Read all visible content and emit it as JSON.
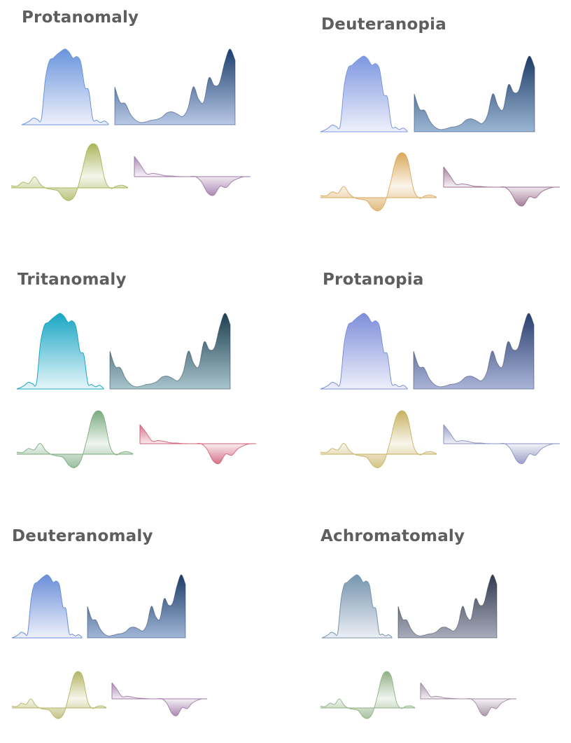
{
  "chart_data": {
    "type": "area",
    "shapes": {
      "bell": [
        0,
        0.02,
        0.05,
        0.09,
        0.07,
        0.08,
        0.6,
        0.84,
        0.88,
        0.93,
        0.97,
        1,
        0.96,
        0.88,
        0.9,
        0.82,
        0.5,
        0.45,
        0.08,
        0.06,
        0.03,
        0.05,
        0.01
      ],
      "rising": [
        0.5,
        0.3,
        0.28,
        0.14,
        0.06,
        0.03,
        0.04,
        0.06,
        0.07,
        0.1,
        0.16,
        0.17,
        0.14,
        0.11,
        0.22,
        0.5,
        0.34,
        0.3,
        0.62,
        0.52,
        0.55,
        0.82,
        1,
        0.85
      ],
      "wave": [
        0.05,
        0.04,
        0.13,
        0.1,
        0.25,
        0.08,
        -0.02,
        -0.08,
        -0.15,
        -0.5,
        -0.6,
        -0.3,
        0.3,
        0.85,
        1,
        0.85,
        0.2,
        -0.02,
        0.04,
        0.06,
        0.01
      ],
      "dip": [
        0.85,
        0.5,
        0.12,
        0.14,
        0.1,
        0.04,
        0.03,
        0.01,
        0,
        0,
        0,
        -0.25,
        -0.75,
        -0.85,
        -0.45,
        -0.5,
        -0.22,
        -0.08,
        0,
        0
      ]
    },
    "panels": [
      {
        "title": "Protanomaly",
        "colors": {
          "bell": [
            "#6a95dc",
            "#eef0fb"
          ],
          "rising": [
            "#1c3f6e",
            "#b8c8e6"
          ],
          "wave": "#a9b55a",
          "dip": "#a07aa8"
        }
      },
      {
        "title": "Deuteranopia",
        "colors": {
          "bell": [
            "#7d97e0",
            "#eef0fb"
          ],
          "rising": [
            "#1f3c66",
            "#9ab6d4"
          ],
          "wave": "#d9a85a",
          "dip": "#9a7090"
        }
      },
      {
        "title": "Tritanomaly",
        "colors": {
          "bell": [
            "#1aa6c4",
            "#e6f6fa"
          ],
          "rising": [
            "#1e3f52",
            "#a8c4cc"
          ],
          "wave": "#7aaa7e",
          "dip": "#d0607a"
        }
      },
      {
        "title": "Protanopia",
        "colors": {
          "bell": [
            "#7d8fda",
            "#eeeffa"
          ],
          "rising": [
            "#2a3f6c",
            "#aab4d8"
          ],
          "wave": "#c8b160",
          "dip": "#8c90c0"
        }
      },
      {
        "title": "Deuteranomaly",
        "colors": {
          "bell": [
            "#6a8fd8",
            "#eef0fb"
          ],
          "rising": [
            "#1e3c66",
            "#a0b6d8"
          ],
          "wave": "#b4b464",
          "dip": "#a07aa8"
        }
      },
      {
        "title": "Achromatomaly",
        "colors": {
          "bell": [
            "#7595ae",
            "#eceef5"
          ],
          "rising": [
            "#333a4e",
            "#a8acbc"
          ],
          "wave": "#90b084",
          "dip": "#a08aa0"
        }
      }
    ]
  }
}
